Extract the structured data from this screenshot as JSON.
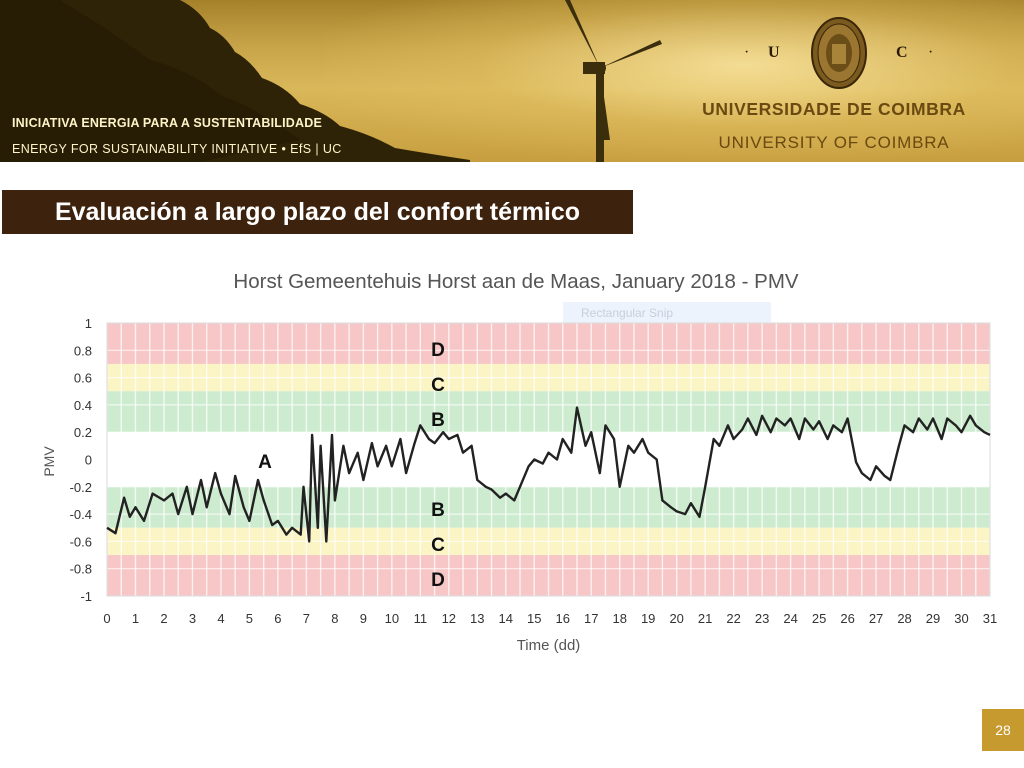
{
  "header": {
    "org_line1": "INICIATIVA ENERGIA  PARA  A  SUSTENTABILIDADE",
    "org_line2": "ENERGY  FOR  SUSTAINABILITY  INITIATIVE  •    EfS | UC",
    "uc_left": "U",
    "uc_right": "C",
    "dot": "·",
    "university_pt": "UNIVERSIDADE  DE  COIMBRA",
    "university_en": "UNIVERSITY  OF  COIMBRA"
  },
  "slide": {
    "title": "Evaluación a largo plazo del confort térmico",
    "page_number": "28",
    "snip_label": "Rectangular Snip"
  },
  "colors": {
    "zone_d": "#f7c6c6",
    "zone_c": "#fbf4c4",
    "zone_b": "#cdeccf",
    "zone_a": "#ffffff",
    "line": "#222222",
    "title_bar": "#3d230d",
    "accent_gold": "#c69a2e"
  },
  "chart_data": {
    "type": "line",
    "title": "Horst Gemeentehuis Horst aan de Maas, January 2018 - PMV",
    "xlabel": "Time (dd)",
    "ylabel": "PMV",
    "xlim": [
      0,
      31
    ],
    "ylim": [
      -1,
      1
    ],
    "x_ticks": [
      "0",
      "1",
      "2",
      "3",
      "4",
      "5",
      "6",
      "7",
      "8",
      "9",
      "10",
      "11",
      "12",
      "13",
      "14",
      "15",
      "16",
      "17",
      "18",
      "19",
      "20",
      "21",
      "22",
      "23",
      "24",
      "25",
      "26",
      "27",
      "28",
      "29",
      "30",
      "31"
    ],
    "y_ticks": [
      "1",
      "0.8",
      "0.6",
      "0.4",
      "0.2",
      "0",
      "-0.2",
      "-0.4",
      "-0.6",
      "-0.8",
      "-1"
    ],
    "grid": true,
    "zones": [
      {
        "label": "D",
        "y_from": 0.7,
        "y_to": 1.0
      },
      {
        "label": "C",
        "y_from": 0.5,
        "y_to": 0.7
      },
      {
        "label": "B",
        "y_from": 0.2,
        "y_to": 0.5
      },
      {
        "label": "A",
        "y_from": -0.2,
        "y_to": 0.2
      },
      {
        "label": "B",
        "y_from": -0.5,
        "y_to": -0.2
      },
      {
        "label": "C",
        "y_from": -0.7,
        "y_to": -0.5
      },
      {
        "label": "D",
        "y_from": -1.0,
        "y_to": -0.7
      }
    ],
    "series": [
      {
        "x": [
          0,
          0.3,
          0.6,
          0.8,
          1.0,
          1.3,
          1.6,
          2.0,
          2.3,
          2.5,
          2.8,
          3.0,
          3.3,
          3.5,
          3.8,
          4.0,
          4.3,
          4.5,
          4.8,
          5.0,
          5.3,
          5.5,
          5.8,
          6.0,
          6.3,
          6.5,
          6.8,
          6.9,
          7.1,
          7.2,
          7.4,
          7.5,
          7.7,
          7.9,
          8.0,
          8.3,
          8.5,
          8.8,
          9.0,
          9.3,
          9.5,
          9.8,
          10.0,
          10.3,
          10.5,
          10.8,
          11.0,
          11.3,
          11.5,
          11.8,
          12.0,
          12.3,
          12.5,
          12.8,
          13.0,
          13.3,
          13.5,
          13.8,
          14.0,
          14.3,
          14.5,
          14.8,
          15.0,
          15.3,
          15.5,
          15.8,
          16.0,
          16.3,
          16.5,
          16.8,
          17.0,
          17.3,
          17.5,
          17.8,
          18.0,
          18.3,
          18.5,
          18.8,
          19.0,
          19.3,
          19.5,
          19.8,
          20.0,
          20.3,
          20.5,
          20.8,
          21.0,
          21.3,
          21.5,
          21.8,
          22.0,
          22.3,
          22.5,
          22.8,
          23.0,
          23.3,
          23.5,
          23.8,
          24.0,
          24.3,
          24.5,
          24.8,
          25.0,
          25.3,
          25.5,
          25.8,
          26.0,
          26.3,
          26.5,
          26.8,
          27.0,
          27.3,
          27.5,
          27.8,
          28.0,
          28.3,
          28.5,
          28.8,
          29.0,
          29.3,
          29.5,
          29.8,
          30.0,
          30.3,
          30.5,
          30.8,
          31.0
        ],
        "y": [
          -0.5,
          -0.54,
          -0.28,
          -0.42,
          -0.35,
          -0.45,
          -0.25,
          -0.3,
          -0.25,
          -0.4,
          -0.2,
          -0.4,
          -0.15,
          -0.35,
          -0.1,
          -0.25,
          -0.4,
          -0.12,
          -0.35,
          -0.45,
          -0.15,
          -0.3,
          -0.48,
          -0.45,
          -0.55,
          -0.5,
          -0.55,
          -0.2,
          -0.6,
          0.18,
          -0.5,
          0.1,
          -0.6,
          0.18,
          -0.3,
          0.1,
          -0.1,
          0.05,
          -0.15,
          0.12,
          -0.05,
          0.1,
          -0.05,
          0.15,
          -0.1,
          0.12,
          0.25,
          0.15,
          0.12,
          0.2,
          0.15,
          0.18,
          0.05,
          0.1,
          -0.15,
          -0.2,
          -0.22,
          -0.28,
          -0.25,
          -0.3,
          -0.2,
          -0.05,
          0.0,
          -0.03,
          0.05,
          0.0,
          0.15,
          0.05,
          0.38,
          0.1,
          0.2,
          -0.1,
          0.25,
          0.15,
          -0.2,
          0.1,
          0.05,
          0.15,
          0.05,
          0.0,
          -0.3,
          -0.35,
          -0.38,
          -0.4,
          -0.32,
          -0.42,
          -0.2,
          0.15,
          0.1,
          0.25,
          0.15,
          0.22,
          0.3,
          0.18,
          0.32,
          0.2,
          0.3,
          0.25,
          0.3,
          0.15,
          0.3,
          0.22,
          0.28,
          0.15,
          0.25,
          0.2,
          0.3,
          -0.02,
          -0.1,
          -0.15,
          -0.05,
          -0.12,
          -0.15,
          0.1,
          0.25,
          0.2,
          0.3,
          0.22,
          0.3,
          0.15,
          0.3,
          0.25,
          0.2,
          0.32,
          0.25,
          0.2,
          0.18
        ]
      }
    ],
    "annotations": [
      "D",
      "C",
      "B",
      "A",
      "B",
      "C",
      "D"
    ]
  }
}
